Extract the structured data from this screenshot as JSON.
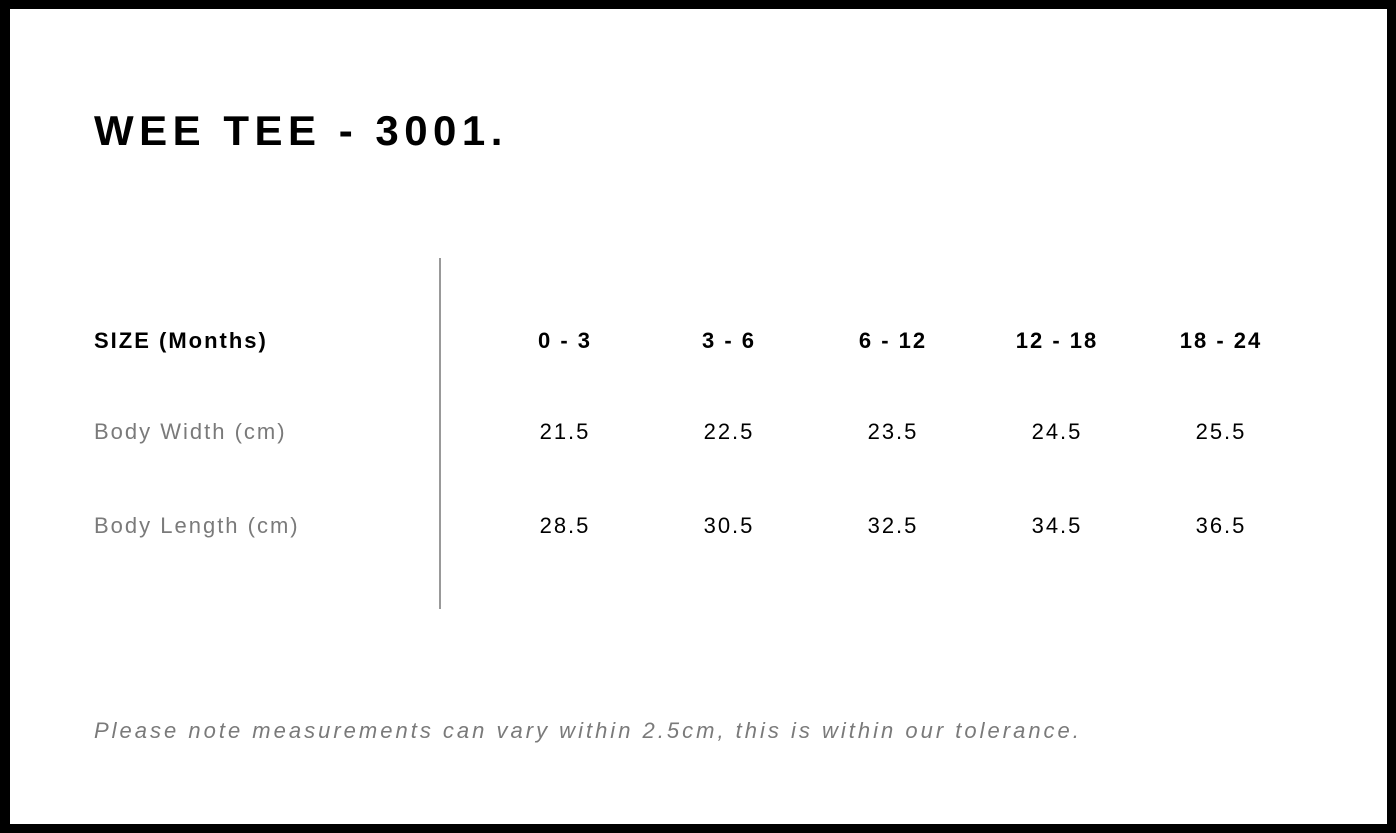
{
  "title": "WEE TEE - 3001.",
  "table": {
    "header_label": "SIZE (Months)",
    "sizes": [
      "0 - 3",
      "3 - 6",
      "6 - 12",
      "12 - 18",
      "18 - 24"
    ],
    "rows": [
      {
        "label": "Body Width (cm)",
        "values": [
          "21.5",
          "22.5",
          "23.5",
          "24.5",
          "25.5"
        ]
      },
      {
        "label": "Body Length (cm)",
        "values": [
          "28.5",
          "30.5",
          "32.5",
          "34.5",
          "36.5"
        ]
      }
    ]
  },
  "note": "Please note measurements can vary within 2.5cm, this is within our tolerance."
}
